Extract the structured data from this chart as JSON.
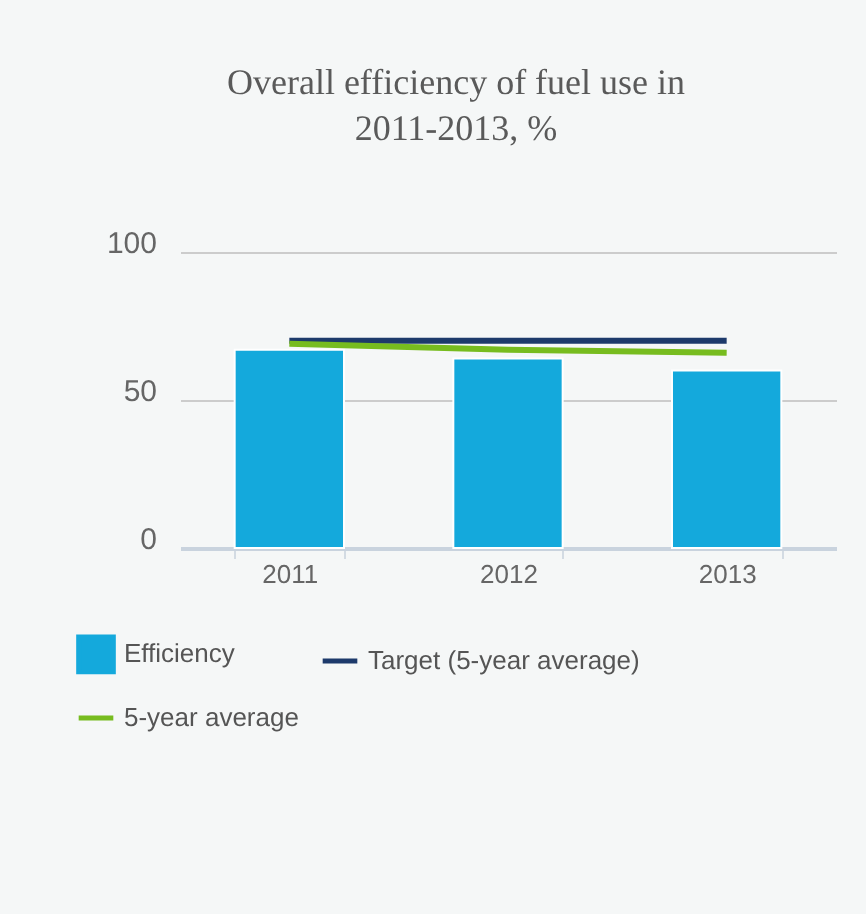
{
  "chart_data": {
    "type": "bar",
    "title": "Overall efficiency of fuel use in\n2011-2013, %",
    "categories": [
      "2011",
      "2012",
      "2013"
    ],
    "series": [
      {
        "name": "Efficiency",
        "color": "#14a9dc",
        "values": [
          67,
          64,
          60
        ]
      },
      {
        "name": "Target (5-year average)",
        "type": "line",
        "color": "#1d3a6b",
        "values": [
          70,
          70,
          70
        ]
      },
      {
        "name": "5-year average",
        "type": "line",
        "color": "#77bc1f",
        "values": [
          69,
          67,
          66
        ]
      }
    ],
    "ylim": [
      0,
      100
    ],
    "yticks": [
      0,
      50,
      100
    ],
    "grid": "y",
    "legend": "bottom"
  }
}
